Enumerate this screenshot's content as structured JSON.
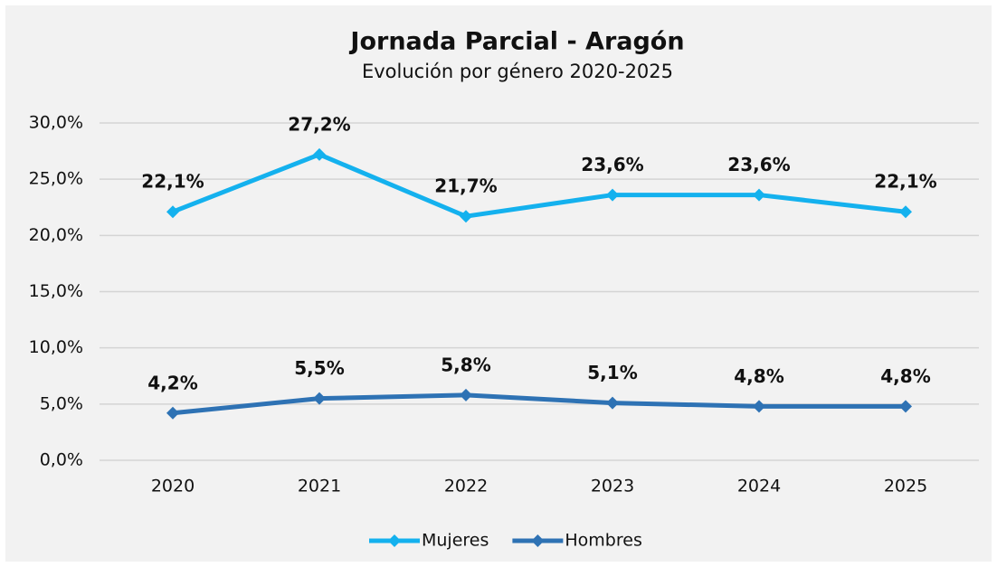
{
  "chart_data": {
    "type": "line",
    "title": "Jornada Parcial - Aragón",
    "subtitle": "Evolución por género 2020-2025",
    "categories": [
      "2020",
      "2021",
      "2022",
      "2023",
      "2024",
      "2025"
    ],
    "series": [
      {
        "name": "Mujeres",
        "color": "#14b1ee",
        "values": [
          22.1,
          27.2,
          21.7,
          23.6,
          23.6,
          22.1
        ],
        "value_labels": [
          "22,1%",
          "27,2%",
          "21,7%",
          "23,6%",
          "23,6%",
          "22,1%"
        ]
      },
      {
        "name": "Hombres",
        "color": "#2e72b4",
        "values": [
          4.2,
          5.5,
          5.8,
          5.1,
          4.8,
          4.8
        ],
        "value_labels": [
          "4,2%",
          "5,5%",
          "5,8%",
          "5,1%",
          "4,8%",
          "4,8%"
        ]
      }
    ],
    "ylim": [
      0,
      30
    ],
    "yticks": [
      {
        "value": 0,
        "label": "0,0%"
      },
      {
        "value": 5,
        "label": "5,0%"
      },
      {
        "value": 10,
        "label": "10,0%"
      },
      {
        "value": 15,
        "label": "15,0%"
      },
      {
        "value": 20,
        "label": "20,0%"
      },
      {
        "value": 25,
        "label": "25,0%"
      },
      {
        "value": 30,
        "label": "30,0%"
      }
    ],
    "grid": true,
    "legend": "bottom"
  }
}
